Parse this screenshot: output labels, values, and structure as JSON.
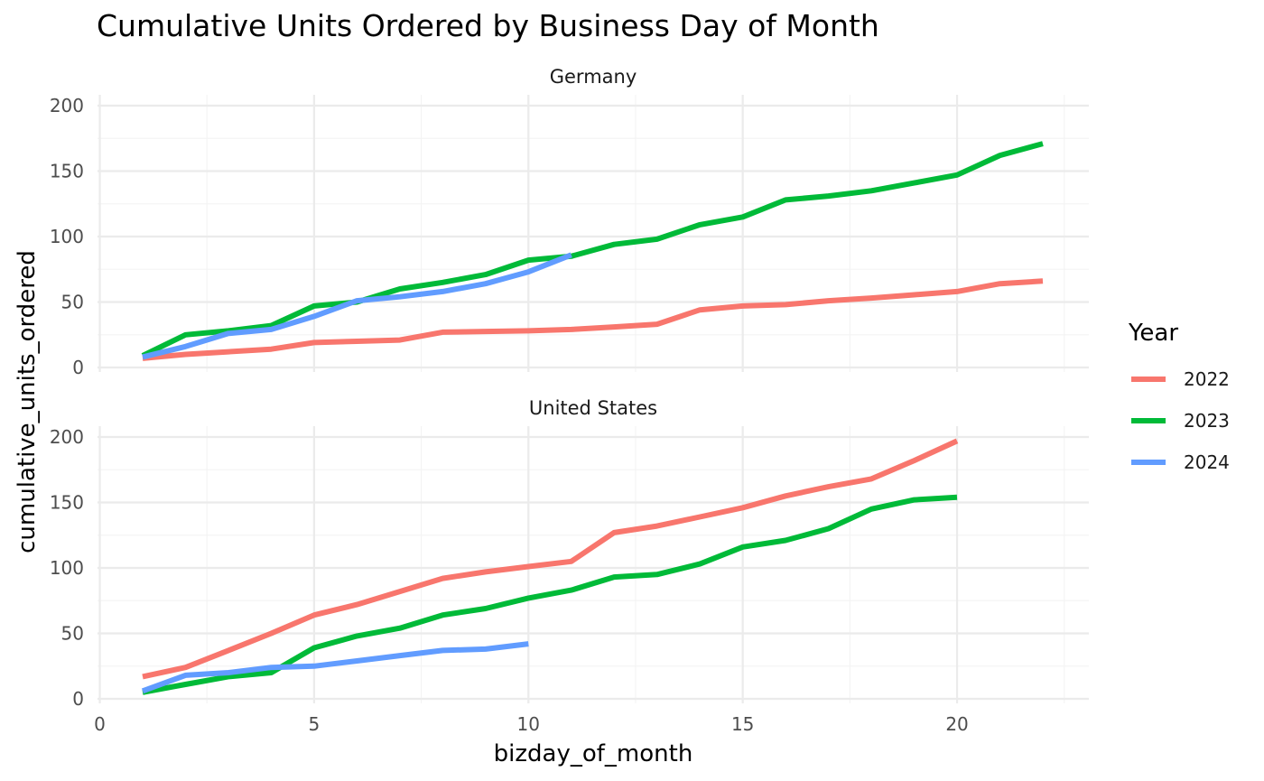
{
  "chart_data": {
    "type": "line",
    "title": "Cumulative Units Ordered by Business Day of Month",
    "xlabel": "bizday_of_month",
    "ylabel": "cumulative_units_ordered",
    "xlim": [
      0,
      23
    ],
    "ylim": [
      0,
      200
    ],
    "x_ticks": [
      0,
      5,
      10,
      15,
      20
    ],
    "y_ticks": [
      0,
      50,
      100,
      150,
      200
    ],
    "grid": true,
    "legend": {
      "title": "Year",
      "placement": "right",
      "entries": [
        "2022",
        "2023",
        "2024"
      ]
    },
    "colors": {
      "2022": "#F8766D",
      "2023": "#00BA38",
      "2024": "#619CFF"
    },
    "panels": [
      {
        "name": "Germany",
        "series": [
          {
            "name": "2022",
            "x": [
              1,
              2,
              3,
              4,
              5,
              6,
              7,
              8,
              9,
              10,
              11,
              12,
              13,
              14,
              15,
              16,
              17,
              18,
              19,
              20,
              21,
              22
            ],
            "values": [
              7,
              10,
              12,
              14,
              19,
              20,
              21,
              27,
              27.5,
              28,
              29,
              31,
              33,
              44,
              47,
              48,
              51,
              53,
              55.5,
              58,
              64,
              66
            ]
          },
          {
            "name": "2023",
            "x": [
              1,
              2,
              3,
              4,
              5,
              6,
              7,
              8,
              9,
              10,
              11,
              12,
              13,
              14,
              15,
              16,
              17,
              18,
              19,
              20,
              21,
              22
            ],
            "values": [
              9,
              25,
              28,
              32,
              47,
              50,
              60,
              65,
              71,
              82,
              85,
              94,
              98,
              109,
              115,
              128,
              131,
              135,
              141,
              147,
              162,
              171
            ]
          },
          {
            "name": "2024",
            "x": [
              1,
              2,
              3,
              4,
              5,
              6,
              7,
              8,
              9,
              10,
              11
            ],
            "values": [
              8,
              16,
              26,
              29,
              39,
              51,
              54,
              58,
              64,
              73,
              86
            ]
          }
        ]
      },
      {
        "name": "United States",
        "series": [
          {
            "name": "2022",
            "x": [
              1,
              2,
              3,
              4,
              5,
              6,
              7,
              8,
              9,
              10,
              11,
              12,
              13,
              14,
              15,
              16,
              17,
              18,
              19,
              20
            ],
            "values": [
              17,
              24,
              37,
              50,
              64,
              72,
              82,
              92,
              97,
              101,
              105,
              127,
              132,
              139,
              146,
              155,
              162,
              168,
              182,
              197
            ]
          },
          {
            "name": "2023",
            "x": [
              1,
              2,
              3,
              4,
              5,
              6,
              7,
              8,
              9,
              10,
              11,
              12,
              13,
              14,
              15,
              16,
              17,
              18,
              19,
              20
            ],
            "values": [
              5,
              11,
              17,
              20,
              39,
              48,
              54,
              64,
              69,
              77,
              83,
              93,
              95,
              103,
              116,
              121,
              130,
              145,
              152,
              154
            ]
          },
          {
            "name": "2024",
            "x": [
              1,
              2,
              3,
              4,
              5,
              6,
              7,
              8,
              9,
              10
            ],
            "values": [
              6,
              18,
              20,
              24,
              25,
              29,
              33,
              37,
              38,
              42
            ]
          }
        ]
      }
    ]
  }
}
